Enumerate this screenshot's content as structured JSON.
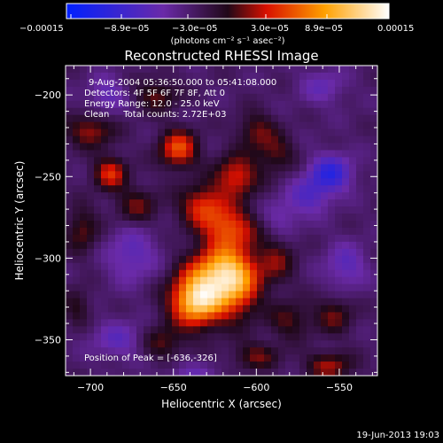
{
  "chart_data": {
    "type": "heatmap",
    "title": "Reconstructed RHESSI Image",
    "xlabel": "Heliocentric X (arcsec)",
    "ylabel": "Heliocentric Y (arcsec)",
    "xlim": [
      -715,
      -527
    ],
    "ylim": [
      -372,
      -182
    ],
    "x_ticks": [
      -700,
      -650,
      -600,
      -550
    ],
    "y_ticks": [
      -200,
      -250,
      -300,
      -350
    ],
    "x_tick_labels": [
      "−700",
      "−650",
      "−600",
      "−550"
    ],
    "y_tick_labels": [
      "−200",
      "−250",
      "−300",
      "−350"
    ],
    "colorbar": {
      "range": [
        -0.00015,
        0.00015
      ],
      "tick_labels": [
        "−0.00015",
        "−8.9e−05",
        "−3.0e−05",
        "3.0e−05",
        "8.9e−05",
        "0.00015"
      ],
      "units_label": "(photons cm⁻² s⁻¹ asec⁻²)",
      "colors": [
        "#0020ff",
        "#6a2aa8",
        "#200818",
        "#ff2000",
        "#ffa000",
        "#ffffff"
      ]
    },
    "annotations": [
      "9-Aug-2004 05:36:50.000 to 05:41:08.000",
      "Detectors: 4F 5F 6F 7F 8F, Att 0",
      "Energy Range: 12.0 - 25.0 keV",
      "Clean     Total counts: 2.72E+03"
    ],
    "peak_label": "Position of Peak = [-636,-326]",
    "peak": {
      "x": -636,
      "y": -326
    },
    "features": [
      {
        "x": -636,
        "y": -326,
        "sx": 11,
        "sy": 11,
        "a": 1.0
      },
      {
        "x": -622,
        "y": -308,
        "sx": 13,
        "sy": 11,
        "a": 0.72
      },
      {
        "x": -612,
        "y": -318,
        "sx": 10,
        "sy": 14,
        "a": 0.55
      },
      {
        "x": -616,
        "y": -282,
        "sx": 11,
        "sy": 9,
        "a": 0.55
      },
      {
        "x": -632,
        "y": -268,
        "sx": 10,
        "sy": 9,
        "a": 0.5
      },
      {
        "x": -612,
        "y": -250,
        "sx": 9,
        "sy": 9,
        "a": 0.5
      },
      {
        "x": -647,
        "y": -233,
        "sx": 8,
        "sy": 8,
        "a": 0.6
      },
      {
        "x": -688,
        "y": -248,
        "sx": 7,
        "sy": 7,
        "a": 0.5
      },
      {
        "x": -700,
        "y": -222,
        "sx": 10,
        "sy": 7,
        "a": 0.38
      },
      {
        "x": -672,
        "y": -268,
        "sx": 9,
        "sy": 8,
        "a": 0.3
      },
      {
        "x": -600,
        "y": -222,
        "sx": 8,
        "sy": 8,
        "a": 0.3
      },
      {
        "x": -588,
        "y": -236,
        "sx": 8,
        "sy": 8,
        "a": 0.28
      },
      {
        "x": -588,
        "y": -302,
        "sx": 8,
        "sy": 10,
        "a": 0.3
      },
      {
        "x": -580,
        "y": -338,
        "sx": 9,
        "sy": 8,
        "a": 0.28
      },
      {
        "x": -553,
        "y": -335,
        "sx": 8,
        "sy": 8,
        "a": 0.3
      },
      {
        "x": -556,
        "y": -366,
        "sx": 10,
        "sy": 6,
        "a": 0.38
      },
      {
        "x": -600,
        "y": -360,
        "sx": 10,
        "sy": 6,
        "a": 0.3
      },
      {
        "x": -657,
        "y": -352,
        "sx": 9,
        "sy": 7,
        "a": 0.3
      },
      {
        "x": -660,
        "y": -200,
        "sx": 9,
        "sy": 7,
        "a": 0.3
      },
      {
        "x": -705,
        "y": -283,
        "sx": 7,
        "sy": 10,
        "a": 0.3
      },
      {
        "x": -708,
        "y": -330,
        "sx": 6,
        "sy": 8,
        "a": 0.22
      },
      {
        "x": -675,
        "y": -298,
        "sx": 11,
        "sy": 12,
        "a": -0.28
      },
      {
        "x": -555,
        "y": -248,
        "sx": 9,
        "sy": 8,
        "a": -0.5
      },
      {
        "x": -568,
        "y": -262,
        "sx": 9,
        "sy": 8,
        "a": -0.3
      },
      {
        "x": -690,
        "y": -200,
        "sx": 8,
        "sy": 8,
        "a": -0.26
      },
      {
        "x": -546,
        "y": -305,
        "sx": 9,
        "sy": 10,
        "a": -0.28
      },
      {
        "x": -683,
        "y": -350,
        "sx": 12,
        "sy": 8,
        "a": -0.26
      },
      {
        "x": -585,
        "y": -275,
        "sx": 8,
        "sy": 8,
        "a": -0.2
      },
      {
        "x": -640,
        "y": -372,
        "sx": 10,
        "sy": 6,
        "a": -0.2
      },
      {
        "x": -560,
        "y": -195,
        "sx": 10,
        "sy": 8,
        "a": -0.22
      }
    ]
  },
  "footer": {
    "timestamp": "19-Jun-2013 19:03"
  }
}
